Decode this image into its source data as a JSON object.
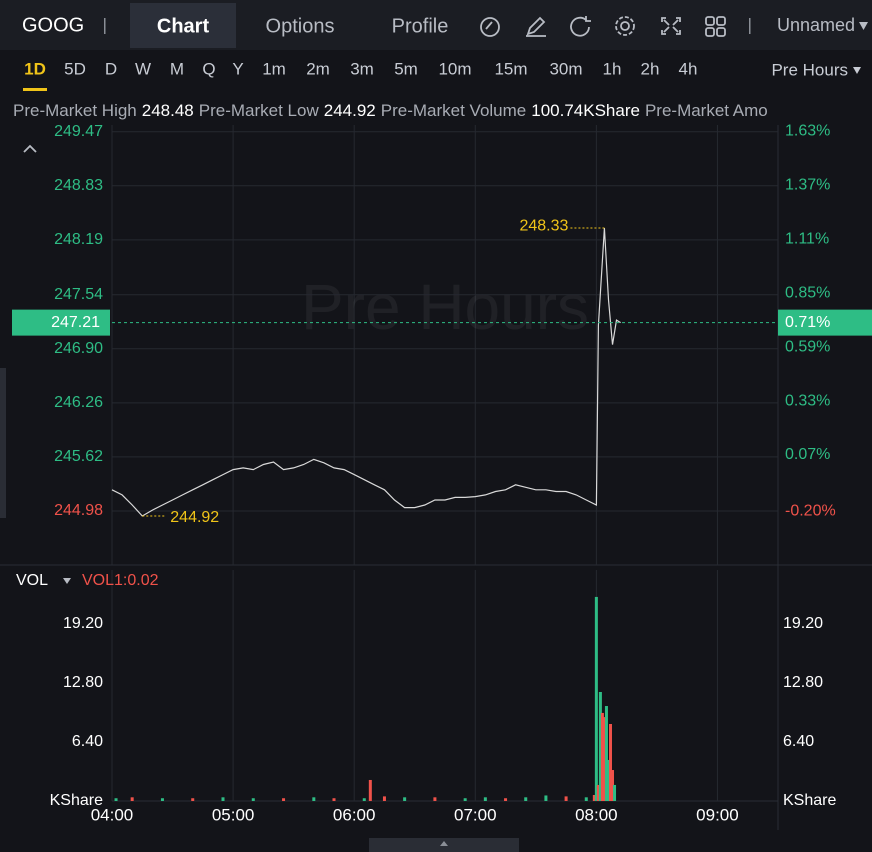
{
  "header": {
    "symbol": "GOOG",
    "tabs": [
      "Chart",
      "Options",
      "Profile"
    ],
    "active_tab": 0,
    "layout_name": "Unnamed"
  },
  "toolbar": {
    "intervals": [
      "1D",
      "5D",
      "D",
      "W",
      "M",
      "Q",
      "Y",
      "1m",
      "2m",
      "3m",
      "5m",
      "10m",
      "15m",
      "30m",
      "1h",
      "2h",
      "4h"
    ],
    "active_interval": 0,
    "session": "Pre Hours"
  },
  "stats": [
    {
      "label": "Pre-Market High",
      "value": 248.48
    },
    {
      "label": "Pre-Market Low",
      "value": 244.92
    },
    {
      "label": "Pre-Market Volume",
      "value": "100.74KShare"
    },
    {
      "label": "Pre-Market Amo"
    }
  ],
  "chart_data": [
    {
      "type": "line",
      "watermark": "Pre Hours",
      "x": [
        "04:00",
        "04:05",
        "04:10",
        "04:15",
        "04:20",
        "04:25",
        "04:30",
        "04:35",
        "04:40",
        "04:45",
        "04:50",
        "04:55",
        "05:00",
        "05:05",
        "05:10",
        "05:15",
        "05:20",
        "05:25",
        "05:30",
        "05:35",
        "05:40",
        "05:45",
        "05:50",
        "05:55",
        "06:00",
        "06:05",
        "06:10",
        "06:15",
        "06:20",
        "06:25",
        "06:30",
        "06:35",
        "06:40",
        "06:45",
        "06:50",
        "06:55",
        "07:00",
        "07:05",
        "07:10",
        "07:15",
        "07:20",
        "07:25",
        "07:30",
        "07:35",
        "07:40",
        "07:45",
        "07:50",
        "07:55",
        "08:00",
        "08:01",
        "08:04",
        "08:06",
        "08:08",
        "08:10",
        "08:12"
      ],
      "values": [
        245.23,
        245.17,
        245.05,
        244.92,
        244.99,
        245.05,
        245.11,
        245.17,
        245.23,
        245.29,
        245.35,
        245.41,
        245.47,
        245.49,
        245.47,
        245.53,
        245.56,
        245.47,
        245.49,
        245.53,
        245.59,
        245.55,
        245.49,
        245.47,
        245.41,
        245.35,
        245.29,
        245.23,
        245.11,
        245.02,
        245.02,
        245.05,
        245.11,
        245.11,
        245.14,
        245.14,
        245.15,
        245.17,
        245.21,
        245.23,
        245.29,
        245.26,
        245.23,
        245.23,
        245.21,
        245.21,
        245.17,
        245.11,
        245.05,
        247.18,
        248.33,
        247.48,
        246.95,
        247.24,
        247.21
      ],
      "color": "#d9d9d9",
      "xlim": [
        "04:00",
        "09:30"
      ],
      "xticks": [
        "04:00",
        "05:00",
        "06:00",
        "07:00",
        "08:00",
        "09:00"
      ],
      "ylim": [
        244.34,
        249.55
      ],
      "yticks": [
        249.47,
        248.83,
        248.19,
        247.54,
        {
          "value": 246.9,
          "label": "246.90"
        },
        246.26,
        245.62,
        244.98
      ],
      "y2lim": [
        -0.46,
        1.66
      ],
      "y2ticks": [
        {
          "value": 1.63,
          "label": "1.63%"
        },
        {
          "value": 1.37,
          "label": "1.37%"
        },
        {
          "value": 1.11,
          "label": "1.11%"
        },
        {
          "value": 0.85,
          "label": "0.85%"
        },
        {
          "value": 0.59,
          "label": "0.59%"
        },
        {
          "value": 0.33,
          "label": "0.33%"
        },
        {
          "value": 0.07,
          "label": "0.07%"
        },
        {
          "value": -0.2,
          "label": "-0.20%"
        }
      ],
      "grid": true,
      "up_color": "#2ebd85",
      "down_color": "#f0524a",
      "last_price": 247.21,
      "last_change": {
        "value": 0.71,
        "label": "0.71%"
      },
      "annotations": [
        {
          "x": "08:04",
          "value": 248.33
        },
        {
          "x": "04:15",
          "value": 244.92
        }
      ],
      "annotation_color": "#f0c419"
    },
    {
      "type": "bar",
      "indicator": "VOL",
      "indicator_label": "VOL1:0.02",
      "x": [
        "04:02",
        "04:10",
        "04:25",
        "04:40",
        "04:55",
        "05:10",
        "05:25",
        "05:40",
        "05:50",
        "06:05",
        "06:08",
        "06:15",
        "06:25",
        "06:40",
        "06:55",
        "07:05",
        "07:15",
        "07:25",
        "07:35",
        "07:45",
        "07:55",
        "07:59",
        "08:00",
        "08:01",
        "08:02",
        "08:03",
        "08:04",
        "08:05",
        "08:06",
        "08:07",
        "08:08",
        "08:09"
      ],
      "values": [
        0.3,
        0.4,
        0.3,
        0.3,
        0.4,
        0.3,
        0.3,
        0.4,
        0.3,
        0.3,
        2.28,
        0.5,
        0.4,
        0.4,
        0.3,
        0.4,
        0.3,
        0.4,
        0.6,
        0.5,
        0.4,
        0.65,
        22.13,
        1.74,
        11.82,
        9.55,
        9.1,
        10.3,
        4.45,
        8.35,
        3.36,
        1.74
      ],
      "colors": [
        "#2ebd85",
        "#f0524a",
        "#2ebd85",
        "#f0524a",
        "#2ebd85",
        "#2ebd85",
        "#f0524a",
        "#2ebd85",
        "#f0524a",
        "#2ebd85",
        "#f0524a",
        "#f0524a",
        "#2ebd85",
        "#f0524a",
        "#2ebd85",
        "#2ebd85",
        "#f0524a",
        "#2ebd85",
        "#2ebd85",
        "#f0524a",
        "#2ebd85",
        "#f0524a",
        "#2ebd85",
        "#f0524a",
        "#2ebd85",
        "#f0524a",
        "#f0524a",
        "#2ebd85",
        "#2ebd85",
        "#f0524a",
        "#f0524a",
        "#2ebd85"
      ],
      "xlim": [
        "04:00",
        "09:30"
      ],
      "xticks": [
        "04:00",
        "05:00",
        "06:00",
        "07:00",
        "08:00",
        "09:00"
      ],
      "ylim": [
        0,
        25.05
      ],
      "yticks": [
        {
          "value": 0,
          "label": "KShare"
        },
        {
          "value": 6.4,
          "label": "6.40"
        },
        {
          "value": 12.8,
          "label": "12.80"
        },
        {
          "value": 19.2,
          "label": "19.20"
        }
      ],
      "grid": true
    }
  ]
}
